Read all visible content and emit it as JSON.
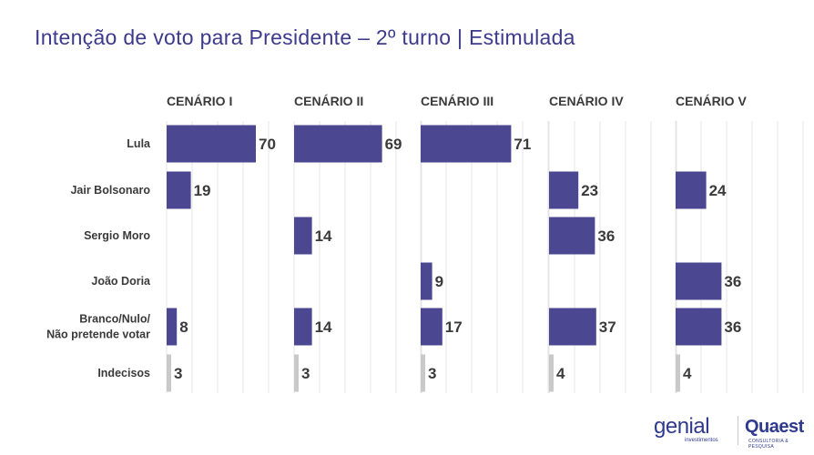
{
  "title": "Intenção de voto para Presidente – 2º turno | Estimulada",
  "colors": {
    "bar": "#4b4791",
    "undecided": "#c9c9c9",
    "title": "#3c3a8c"
  },
  "chart_data": {
    "type": "bar",
    "orientation": "horizontal",
    "grid": true,
    "xlim": [
      0,
      100
    ],
    "candidates": [
      [
        "Lula"
      ],
      [
        "Jair Bolsonaro"
      ],
      [
        "Sergio Moro"
      ],
      [
        "João Doria"
      ],
      [
        "Branco/Nulo/",
        "Não pretende votar"
      ],
      [
        "Indecisos"
      ]
    ],
    "series": [
      {
        "name": "CENÁRIO I",
        "values": [
          70,
          19,
          null,
          null,
          8,
          3
        ]
      },
      {
        "name": "CENÁRIO II",
        "values": [
          69,
          null,
          14,
          null,
          14,
          3
        ]
      },
      {
        "name": "CENÁRIO III",
        "values": [
          71,
          null,
          null,
          9,
          17,
          3
        ]
      },
      {
        "name": "CENÁRIO IV",
        "values": [
          null,
          23,
          36,
          null,
          37,
          4
        ]
      },
      {
        "name": "CENÁRIO V",
        "values": [
          null,
          24,
          null,
          36,
          36,
          4
        ]
      }
    ]
  },
  "logos": {
    "genial": "genial",
    "genial_sub": "investimentos",
    "quaest": "Quaest",
    "quaest_sub": "CONSULTORIA & PESQUISA"
  }
}
